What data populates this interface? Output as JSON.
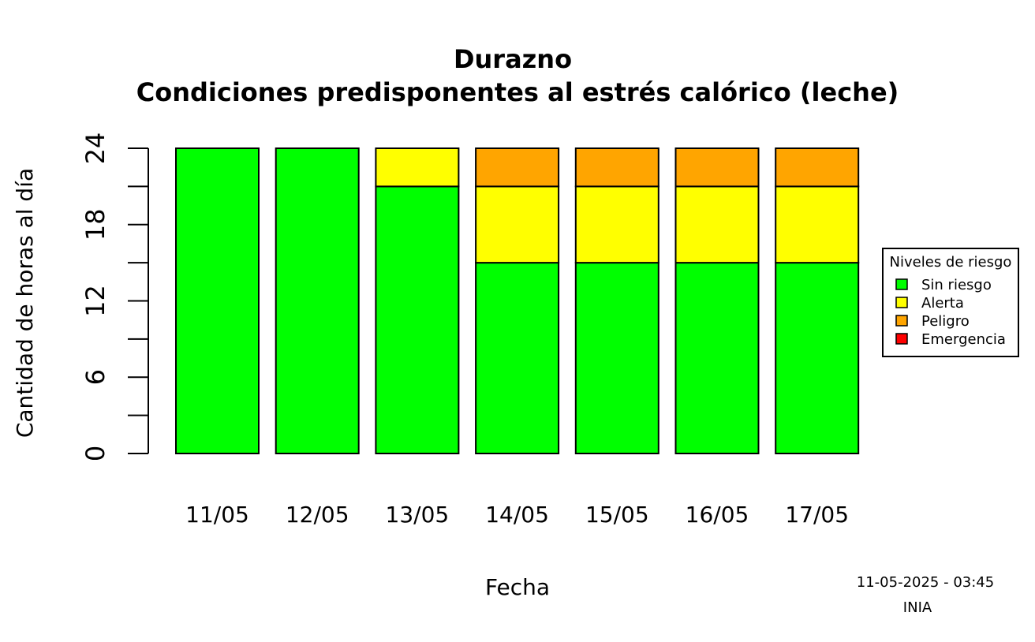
{
  "chart_data": {
    "type": "bar",
    "stacked": true,
    "title": "Durazno",
    "subtitle": "Condiciones predisponentes al estrés calórico (leche)",
    "xlabel": "Fecha",
    "ylabel": "Cantidad de horas al día",
    "ylim": [
      0,
      24
    ],
    "yticks": [
      0,
      6,
      12,
      18,
      24
    ],
    "yminor": [
      3,
      9,
      15,
      21
    ],
    "grid": false,
    "categories": [
      "11/05",
      "12/05",
      "13/05",
      "14/05",
      "15/05",
      "16/05",
      "17/05"
    ],
    "series": [
      {
        "name": "Sin riesgo",
        "color": "#00ff00",
        "values": [
          24,
          24,
          21,
          15,
          15,
          15,
          15
        ]
      },
      {
        "name": "Alerta",
        "color": "#ffff00",
        "values": [
          0,
          0,
          3,
          6,
          6,
          6,
          6
        ]
      },
      {
        "name": "Peligro",
        "color": "#ffa500",
        "values": [
          0,
          0,
          0,
          3,
          3,
          3,
          3
        ]
      },
      {
        "name": "Emergencia",
        "color": "#ff0000",
        "values": [
          0,
          0,
          0,
          0,
          0,
          0,
          0
        ]
      }
    ],
    "legend": {
      "title": "Niveles de riesgo",
      "placement": "right"
    }
  },
  "footer": {
    "timestamp": "11-05-2025 - 03:45",
    "source": "INIA"
  }
}
